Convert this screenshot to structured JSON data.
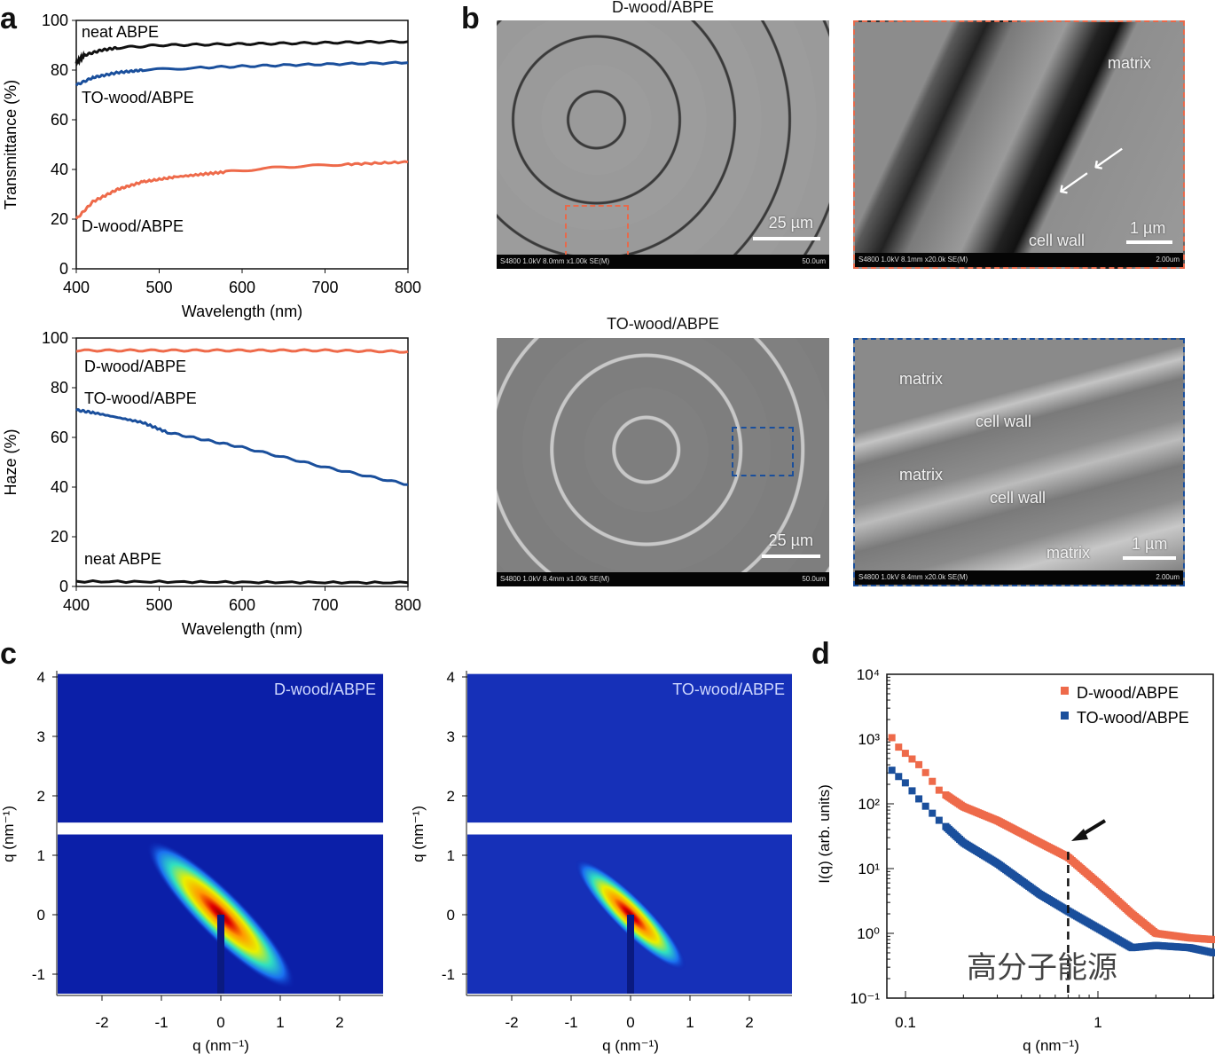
{
  "panel_labels": {
    "a": "a",
    "b": "b",
    "c": "c",
    "d": "d"
  },
  "colors": {
    "neat": "#111111",
    "to": "#1a4f9c",
    "d": "#ee6a4a"
  },
  "sem": {
    "d_title": "D-wood/ABPE",
    "to_title": "TO-wood/ABPE",
    "img1": {
      "scale": "25 µm",
      "info": "S4800 1.0kV 8.0mm x1.00k SE(M)",
      "size": "50.0um"
    },
    "img2": {
      "scale": "1 µm",
      "info": "S4800 1.0kV 8.1mm x20.0k SE(M)",
      "size": "2.00um",
      "labels": [
        "matrix",
        "cell wall"
      ]
    },
    "img3": {
      "scale": "25 µm",
      "info": "S4800 1.0kV 8.4mm x1.00k SE(M)",
      "size": "50.0um"
    },
    "img4": {
      "scale": "1 µm",
      "info": "S4800 1.0kV 8.4mm x20.0k SE(M)",
      "size": "2.00um",
      "labels": [
        "matrix",
        "cell wall",
        "matrix",
        "cell wall",
        "matrix"
      ]
    }
  },
  "watermark": "高分子能源",
  "chart_data": [
    {
      "type": "line",
      "title": "",
      "xlabel": "Wavelength (nm)",
      "ylabel": "Transmittance (%)",
      "xlim": [
        400,
        800
      ],
      "ylim": [
        0,
        100
      ],
      "xticks": [
        "400",
        "500",
        "600",
        "700",
        "800"
      ],
      "yticks": [
        "0",
        "20",
        "40",
        "60",
        "80",
        "100"
      ],
      "series": [
        {
          "name": "neat ABPE",
          "x": [
            400,
            410,
            430,
            450,
            500,
            600,
            700,
            800
          ],
          "values": [
            83,
            86,
            88,
            89,
            90,
            90.5,
            91,
            91.5
          ]
        },
        {
          "name": "TO-wood/ABPE",
          "x": [
            400,
            420,
            450,
            480,
            550,
            650,
            800
          ],
          "values": [
            74,
            77,
            79,
            80,
            81,
            82,
            83
          ]
        },
        {
          "name": "D-wood/ABPE",
          "x": [
            400,
            420,
            450,
            480,
            520,
            580,
            650,
            720,
            800
          ],
          "values": [
            20,
            27,
            32,
            35,
            37,
            39,
            41,
            42,
            43
          ]
        }
      ]
    },
    {
      "type": "line",
      "title": "",
      "xlabel": "Wavelength (nm)",
      "ylabel": "Haze (%)",
      "xlim": [
        400,
        800
      ],
      "ylim": [
        0,
        100
      ],
      "xticks": [
        "400",
        "500",
        "600",
        "700",
        "800"
      ],
      "yticks": [
        "0",
        "20",
        "40",
        "60",
        "80",
        "100"
      ],
      "series": [
        {
          "name": "D-wood/ABPE",
          "x": [
            400,
            500,
            600,
            700,
            800
          ],
          "values": [
            95,
            95,
            95,
            95,
            94.5
          ]
        },
        {
          "name": "TO-wood/ABPE",
          "x": [
            400,
            420,
            480,
            510,
            600,
            700,
            800
          ],
          "values": [
            71,
            70,
            66,
            62,
            56,
            48,
            41
          ]
        },
        {
          "name": "neat ABPE",
          "x": [
            400,
            600,
            800
          ],
          "values": [
            2,
            1.7,
            1.5
          ]
        }
      ]
    },
    {
      "type": "heatmap",
      "title": "D-wood/ABPE",
      "xlabel": "q (nm⁻¹)",
      "ylabel": "q (nm⁻¹)",
      "xticks": [
        "-2",
        "-1",
        "0",
        "1",
        "2"
      ],
      "yticks": [
        "-1",
        "0",
        "1",
        "2",
        "3",
        "4"
      ]
    },
    {
      "type": "heatmap",
      "title": "TO-wood/ABPE",
      "xlabel": "q (nm⁻¹)",
      "ylabel": "q (nm⁻¹)",
      "xticks": [
        "-2",
        "-1",
        "0",
        "1",
        "2"
      ],
      "yticks": [
        "-1",
        "0",
        "1",
        "2",
        "3",
        "4"
      ]
    },
    {
      "type": "scatter",
      "title": "",
      "xlabel": "q (nm⁻¹)",
      "ylabel": "I(q) (arb. units)",
      "xscale": "log",
      "yscale": "log",
      "xlim": [
        0.08,
        4
      ],
      "ylim": [
        0.1,
        10000
      ],
      "xticks": [
        "0.1",
        "1"
      ],
      "yticks": [
        "10⁻¹",
        "10⁰",
        "10¹",
        "10²",
        "10³",
        "10⁴"
      ],
      "legend": "top-right",
      "annotation_q": 0.7,
      "series": [
        {
          "name": "D-wood/ABPE",
          "x": [
            0.085,
            0.09,
            0.1,
            0.12,
            0.15,
            0.2,
            0.3,
            0.5,
            0.7,
            1.0,
            1.5,
            2,
            3,
            4
          ],
          "values": [
            1050,
            800,
            600,
            380,
            160,
            90,
            55,
            25,
            15,
            6,
            2,
            1,
            0.85,
            0.8
          ]
        },
        {
          "name": "TO-wood/ABPE",
          "x": [
            0.085,
            0.1,
            0.12,
            0.15,
            0.2,
            0.3,
            0.5,
            0.7,
            1.0,
            1.5,
            2,
            3,
            4
          ],
          "values": [
            330,
            210,
            110,
            55,
            25,
            12,
            4,
            2.2,
            1.2,
            0.6,
            0.65,
            0.6,
            0.5
          ]
        }
      ]
    }
  ]
}
